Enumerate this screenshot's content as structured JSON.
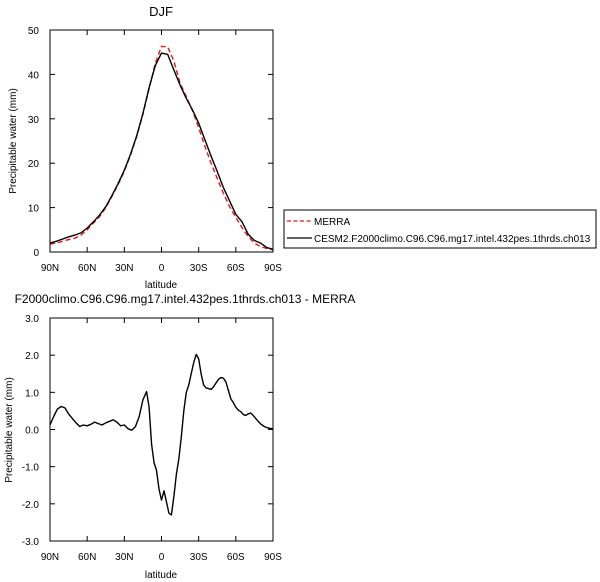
{
  "chart_data": [
    {
      "type": "line",
      "title": "DJF",
      "xlabel": "latitude",
      "ylabel": "Precipitable water (mm)",
      "xlim": [
        90,
        -90
      ],
      "ylim": [
        0,
        50
      ],
      "x_ticks": [
        90,
        60,
        30,
        0,
        -30,
        -60,
        -90
      ],
      "x_tick_labels": [
        "90N",
        "60N",
        "30N",
        "0",
        "30S",
        "60S",
        "90S"
      ],
      "y_ticks": [
        0,
        10,
        20,
        30,
        40,
        50
      ],
      "y_tick_labels": [
        "0",
        "10",
        "20",
        "30",
        "40",
        "50"
      ],
      "legend_position": "right",
      "series": [
        {
          "name": "MERRA",
          "color": "#e8141b",
          "dash": "dashed",
          "x": [
            90,
            85,
            80,
            75,
            70,
            65,
            60,
            55,
            50,
            45,
            40,
            35,
            30,
            25,
            20,
            15,
            10,
            5,
            0,
            -5,
            -10,
            -15,
            -20,
            -25,
            -30,
            -35,
            -40,
            -45,
            -50,
            -55,
            -60,
            -65,
            -70,
            -75,
            -80,
            -85,
            -90
          ],
          "y": [
            1.8,
            2.0,
            2.4,
            2.8,
            3.1,
            3.8,
            5.0,
            6.5,
            8.0,
            10.0,
            12.5,
            15.2,
            18.2,
            21.8,
            26.0,
            31.0,
            36.8,
            42.5,
            46.3,
            46.2,
            43.0,
            38.0,
            35.0,
            31.8,
            28.0,
            23.8,
            20.0,
            16.5,
            13.2,
            10.2,
            7.8,
            5.5,
            3.5,
            2.0,
            1.2,
            0.8,
            0.5
          ]
        },
        {
          "name": "CESM2.F2000climo.C96.C96.mg17.intel.432pes.1thrds.ch013",
          "color": "#000000",
          "dash": "solid",
          "x": [
            90,
            85,
            80,
            75,
            70,
            65,
            60,
            55,
            50,
            45,
            40,
            35,
            30,
            25,
            20,
            15,
            10,
            5,
            0,
            -5,
            -10,
            -15,
            -20,
            -25,
            -30,
            -35,
            -40,
            -45,
            -50,
            -55,
            -60,
            -65,
            -70,
            -75,
            -80,
            -85,
            -90
          ],
          "y": [
            2.0,
            2.4,
            2.9,
            3.4,
            3.8,
            4.3,
            5.4,
            6.8,
            8.3,
            10.2,
            12.7,
            15.4,
            18.4,
            22.0,
            26.2,
            31.2,
            37.0,
            42.0,
            44.8,
            44.5,
            41.0,
            37.6,
            34.6,
            32.0,
            29.0,
            25.3,
            21.6,
            18.1,
            14.5,
            11.5,
            8.5,
            6.8,
            4.0,
            2.6,
            2.0,
            1.0,
            0.6
          ]
        }
      ]
    },
    {
      "type": "line",
      "title": "F2000climo.C96.C96.mg17.intel.432pes.1thrds.ch013 - MERRA",
      "xlabel": "latitude",
      "ylabel": "Precipitable water (mm)",
      "xlim": [
        90,
        -90
      ],
      "ylim": [
        -3,
        3
      ],
      "x_ticks": [
        90,
        60,
        30,
        0,
        -30,
        -60,
        -90
      ],
      "x_tick_labels": [
        "90N",
        "60N",
        "30N",
        "0",
        "30S",
        "60S",
        "90S"
      ],
      "y_ticks": [
        3,
        2,
        1,
        0,
        -1,
        -2,
        -3
      ],
      "y_tick_labels": [
        "3.0",
        "2.0",
        "1.0",
        "0.0",
        "-1.0",
        "-2.0",
        "-3.0"
      ],
      "series": [
        {
          "name": "",
          "color": "#000000",
          "x": [
            90,
            87,
            84,
            81,
            78,
            75,
            72,
            69,
            66,
            63,
            60,
            57,
            54,
            51,
            48,
            45,
            42,
            39,
            36,
            33,
            30,
            27,
            24,
            21,
            18,
            15,
            12,
            10,
            8,
            6,
            4,
            2,
            0,
            -2,
            -4,
            -6,
            -8,
            -10,
            -12,
            -14,
            -16,
            -18,
            -20,
            -22,
            -24,
            -26,
            -28,
            -30,
            -32,
            -34,
            -36,
            -38,
            -40,
            -42,
            -44,
            -46,
            -48,
            -50,
            -52,
            -54,
            -56,
            -58,
            -60,
            -62,
            -64,
            -66,
            -68,
            -70,
            -72,
            -74,
            -76,
            -78,
            -80,
            -83,
            -86,
            -90
          ],
          "y": [
            0.12,
            0.35,
            0.55,
            0.62,
            0.58,
            0.42,
            0.3,
            0.18,
            0.08,
            0.12,
            0.1,
            0.14,
            0.2,
            0.16,
            0.12,
            0.18,
            0.22,
            0.26,
            0.2,
            0.1,
            0.12,
            0.02,
            -0.02,
            0.08,
            0.35,
            0.8,
            1.02,
            0.6,
            -0.4,
            -0.9,
            -1.1,
            -1.6,
            -1.9,
            -1.65,
            -1.95,
            -2.25,
            -2.3,
            -1.8,
            -1.2,
            -0.8,
            -0.2,
            0.5,
            1.0,
            1.2,
            1.5,
            1.8,
            2.02,
            1.9,
            1.5,
            1.2,
            1.12,
            1.1,
            1.08,
            1.15,
            1.25,
            1.35,
            1.4,
            1.38,
            1.28,
            1.05,
            0.82,
            0.72,
            0.6,
            0.52,
            0.48,
            0.4,
            0.38,
            0.42,
            0.44,
            0.38,
            0.3,
            0.22,
            0.15,
            0.08,
            0.04,
            0.02
          ]
        }
      ]
    }
  ]
}
